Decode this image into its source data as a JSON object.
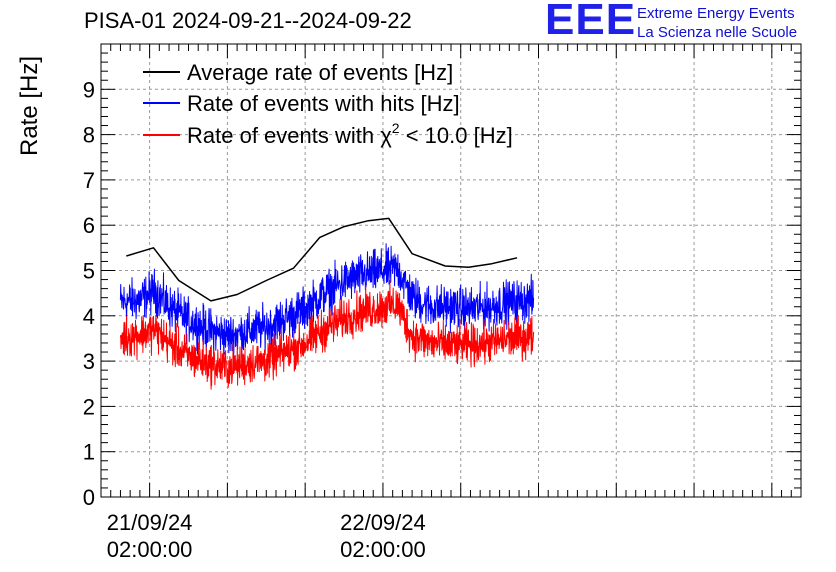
{
  "header": {
    "title": "PISA-01 2024-09-21--2024-09-22",
    "logo_mark": "EEE",
    "logo_line1": "Extreme Energy Events",
    "logo_line2": "La Scienza nelle Scuole"
  },
  "colors": {
    "average": "#000000",
    "hits": "#0000ff",
    "chi2": "#ff0000",
    "logo": "#2020e8",
    "grid": "#9a9a9a"
  },
  "chart_data": {
    "type": "line",
    "title": "PISA-01 2024-09-21--2024-09-22",
    "ylabel": "Rate [Hz]",
    "ylim": [
      0,
      10
    ],
    "y_ticks": [
      "0",
      "1",
      "2",
      "3",
      "4",
      "5",
      "6",
      "7",
      "8",
      "9"
    ],
    "x_unit": "hours since 2024-09-21 00:00",
    "xlim": [
      -3,
      69
    ],
    "x_tick_labels": [
      {
        "x": 2,
        "line1": "21/09/24",
        "line2": "02:00:00"
      },
      {
        "x": 26,
        "line1": "22/09/24",
        "line2": "02:00:00"
      }
    ],
    "grid": true,
    "legend_position": "top-left",
    "legend": [
      {
        "label": "Average rate of events [Hz]",
        "color": "#000000"
      },
      {
        "label": "Rate of events with hits [Hz]",
        "color": "#0000ff"
      },
      {
        "label": "Rate of events with χ² < 10.0 [Hz]",
        "color": "#ff0000",
        "label_prefix": "Rate of events with ",
        "symbol": "χ",
        "sup": "2",
        "label_suffix": " < 10.0 [Hz]"
      }
    ],
    "series": [
      {
        "name": "Average rate of events [Hz]",
        "color": "#000000",
        "x": [
          -0.4,
          2.4,
          5.0,
          8.3,
          11.0,
          14.0,
          16.8,
          19.5,
          22.0,
          24.5,
          26.6,
          29.0,
          32.4,
          34.8,
          37.2,
          39.8
        ],
        "y": [
          5.32,
          5.5,
          4.78,
          4.33,
          4.47,
          4.78,
          5.05,
          5.73,
          5.97,
          6.1,
          6.15,
          5.37,
          5.1,
          5.07,
          5.15,
          5.28
        ]
      },
      {
        "name": "Rate of events with hits [Hz]",
        "color": "#0000ff",
        "noisy": true,
        "noise": 0.23,
        "x": [
          -1.0,
          1.0,
          2.5,
          4.0,
          6.0,
          8.0,
          10.0,
          12.0,
          14.0,
          16.0,
          18.0,
          20.0,
          22.0,
          24.0,
          26.0,
          27.5,
          29.0,
          31.0,
          33.0,
          35.0,
          37.0,
          39.0,
          41.5
        ],
        "y": [
          4.3,
          4.35,
          4.55,
          4.2,
          3.9,
          3.7,
          3.55,
          3.65,
          3.75,
          3.95,
          4.15,
          4.5,
          4.75,
          4.9,
          5.0,
          5.05,
          4.4,
          4.2,
          4.2,
          4.15,
          4.2,
          4.3,
          4.35
        ]
      },
      {
        "name": "Rate of events with χ² < 10.0 [Hz]",
        "color": "#ff0000",
        "noisy": true,
        "noise": 0.22,
        "x": [
          -1.0,
          1.0,
          2.5,
          4.0,
          6.0,
          8.0,
          10.0,
          12.0,
          14.0,
          16.0,
          18.0,
          20.0,
          22.0,
          24.0,
          26.0,
          27.5,
          29.0,
          31.0,
          33.0,
          35.0,
          37.0,
          39.0,
          41.5
        ],
        "y": [
          3.5,
          3.6,
          3.7,
          3.4,
          3.1,
          2.95,
          2.85,
          2.95,
          3.0,
          3.2,
          3.4,
          3.7,
          3.95,
          4.1,
          4.2,
          4.25,
          3.55,
          3.4,
          3.35,
          3.35,
          3.4,
          3.5,
          3.55
        ]
      }
    ]
  }
}
